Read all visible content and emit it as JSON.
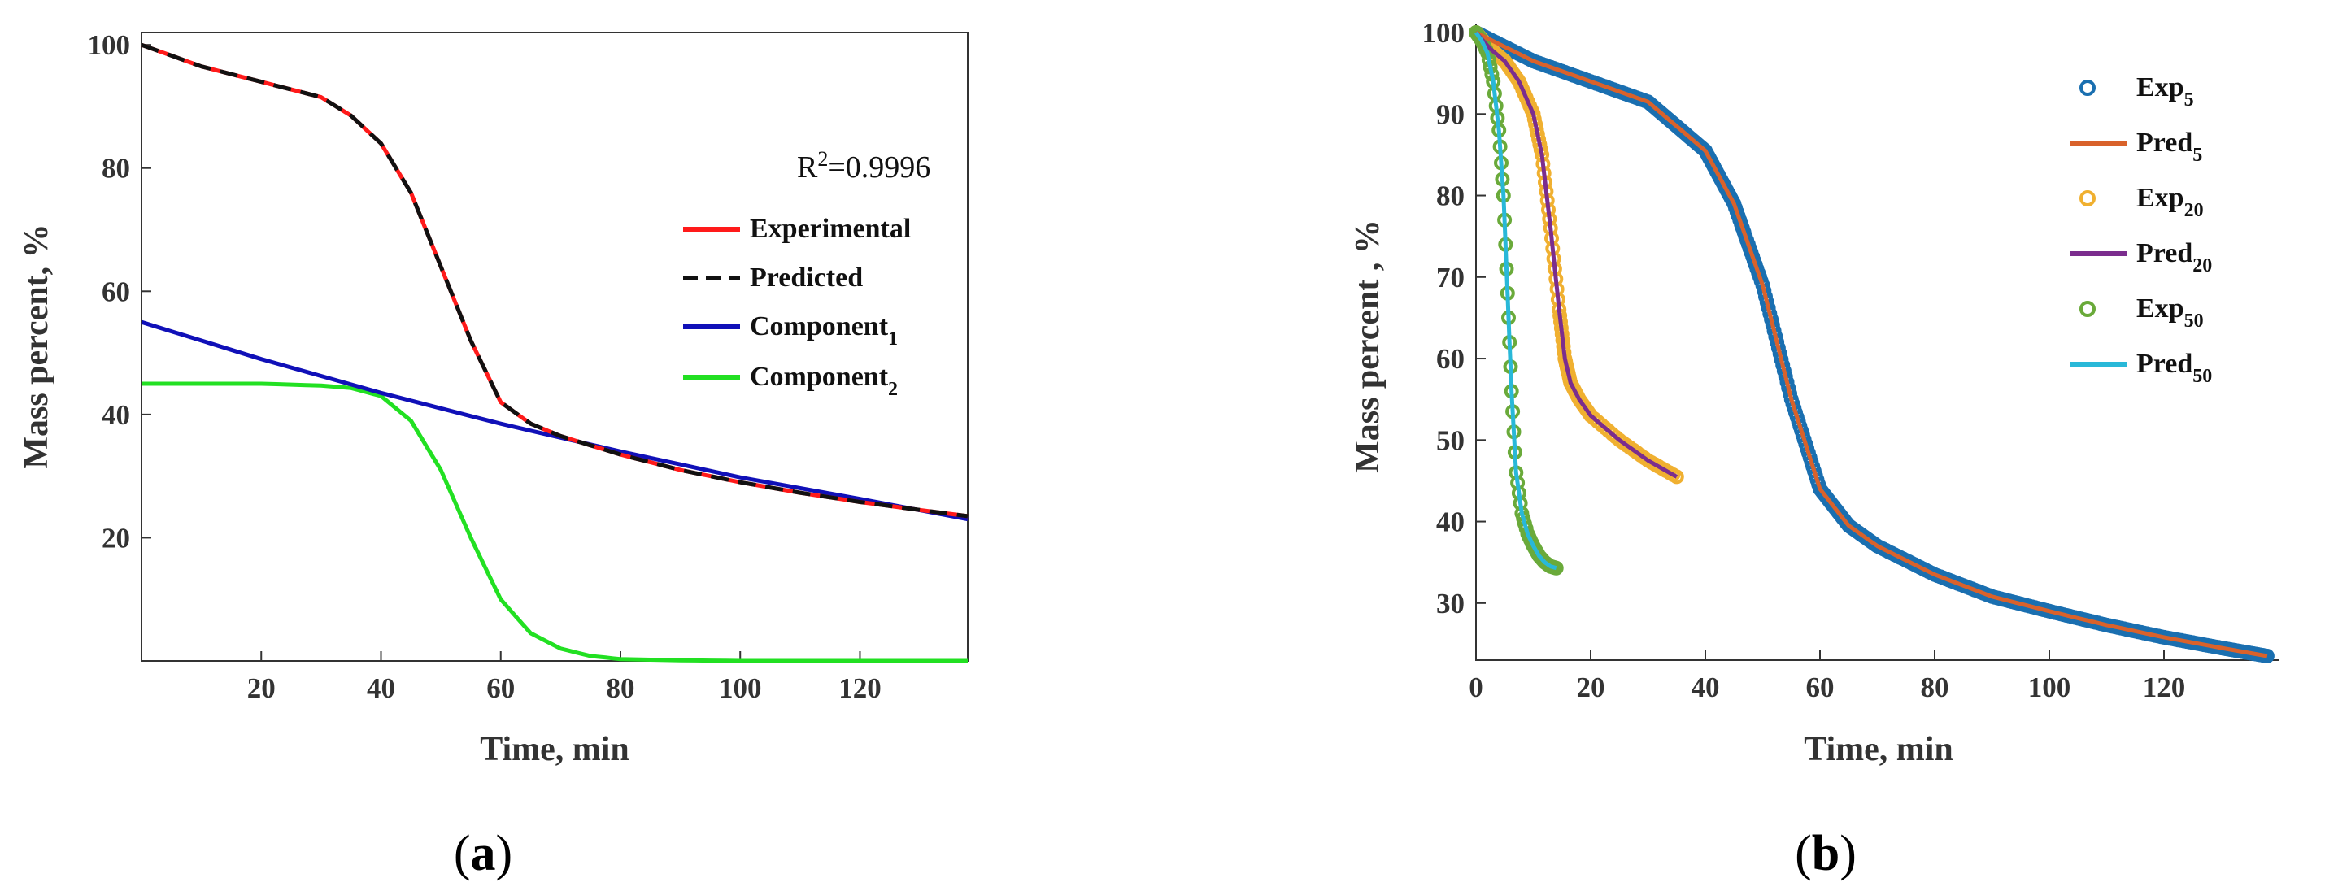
{
  "chart_data": [
    {
      "panel": "a",
      "type": "line",
      "caption": {
        "open": "(",
        "letter": "a",
        "close": ")"
      },
      "xlabel": "Time, min",
      "ylabel": "Mass percent, %",
      "xlim": [
        0,
        138
      ],
      "ylim": [
        0,
        102
      ],
      "xticks": [
        20,
        40,
        60,
        80,
        100,
        120
      ],
      "yticks": [
        20,
        40,
        60,
        80,
        100
      ],
      "annotation": {
        "base": "R",
        "sup": "2",
        "rest": "=0.9996"
      },
      "legend_position": "right",
      "series": [
        {
          "name": "Experimental",
          "sub": "",
          "color": "#ff1a1a",
          "style": "solid",
          "x": [
            0,
            10,
            20,
            30,
            35,
            40,
            45,
            50,
            55,
            60,
            65,
            70,
            80,
            90,
            100,
            110,
            120,
            130,
            138
          ],
          "y": [
            100,
            96.5,
            94,
            91.5,
            88.5,
            84,
            76,
            64,
            52,
            42,
            38.5,
            36.5,
            33.5,
            31,
            29,
            27.3,
            25.8,
            24.5,
            23.5
          ]
        },
        {
          "name": "Predicted",
          "sub": "",
          "color": "#111111",
          "style": "dashed",
          "x": [
            0,
            10,
            20,
            30,
            35,
            40,
            45,
            50,
            55,
            60,
            65,
            70,
            80,
            90,
            100,
            110,
            120,
            130,
            138
          ],
          "y": [
            100,
            96.5,
            94,
            91.5,
            88.5,
            84,
            76,
            64,
            52,
            42,
            38.5,
            36.5,
            33.5,
            31,
            29,
            27.3,
            25.8,
            24.5,
            23.5
          ]
        },
        {
          "name": "Component",
          "sub": "1",
          "color": "#1010b8",
          "style": "solid",
          "x": [
            0,
            20,
            40,
            60,
            80,
            100,
            120,
            138
          ],
          "y": [
            55,
            49,
            43.5,
            38.5,
            34,
            29.8,
            26.3,
            23
          ]
        },
        {
          "name": "Component",
          "sub": "2",
          "color": "#22e022",
          "style": "solid",
          "x": [
            0,
            20,
            30,
            35,
            40,
            45,
            50,
            55,
            60,
            65,
            70,
            75,
            80,
            90,
            100,
            120,
            138
          ],
          "y": [
            45,
            45,
            44.7,
            44.3,
            43,
            39,
            31,
            20,
            10,
            4.5,
            2,
            0.8,
            0.3,
            0.1,
            0,
            0,
            0
          ]
        }
      ]
    },
    {
      "panel": "b",
      "type": "line",
      "caption": {
        "open": "(",
        "letter": "b",
        "close": ")"
      },
      "xlabel": "Time, min",
      "ylabel": "Mass percent , %",
      "xlim": [
        0,
        140
      ],
      "ylim": [
        23,
        101
      ],
      "xticks": [
        0,
        20,
        40,
        60,
        80,
        100,
        120
      ],
      "yticks": [
        30,
        40,
        50,
        60,
        70,
        80,
        90,
        100
      ],
      "legend_position": "top-right",
      "series": [
        {
          "name": "Exp",
          "sub": "5",
          "kind": "markers",
          "color": "#1a6fb0",
          "x": [
            0,
            10,
            20,
            30,
            35,
            40,
            45,
            50,
            55,
            60,
            65,
            70,
            80,
            90,
            100,
            110,
            120,
            130,
            138
          ],
          "y": [
            100,
            96.5,
            94,
            91.5,
            88.5,
            85.5,
            79,
            69,
            55,
            44,
            39.5,
            37,
            33.5,
            30.8,
            29,
            27.3,
            25.8,
            24.5,
            23.5
          ]
        },
        {
          "name": "Pred",
          "sub": "5",
          "kind": "line",
          "color": "#d9622b",
          "x": [
            0,
            10,
            20,
            30,
            35,
            40,
            45,
            50,
            55,
            60,
            65,
            70,
            80,
            90,
            100,
            110,
            120,
            130,
            138
          ],
          "y": [
            100,
            96.5,
            94,
            91.5,
            88.5,
            85.5,
            79,
            69,
            55,
            44,
            39.5,
            37,
            33.5,
            30.8,
            29,
            27.3,
            25.8,
            24.5,
            23.5
          ]
        },
        {
          "name": "Exp",
          "sub": "20",
          "kind": "markers",
          "color": "#f0b030",
          "x": [
            0,
            2.5,
            5,
            7.5,
            10,
            11.5,
            13,
            14.5,
            15.5,
            16.5,
            18,
            20,
            25,
            30,
            35
          ],
          "y": [
            100,
            98,
            96.5,
            94,
            90,
            85,
            76,
            66,
            60,
            57,
            55,
            53,
            50,
            47.5,
            45.5
          ]
        },
        {
          "name": "Pred",
          "sub": "20",
          "kind": "line",
          "color": "#7b2d8e",
          "x": [
            0,
            2.5,
            5,
            7.5,
            10,
            11.5,
            13,
            14.5,
            15.5,
            16.5,
            18,
            20,
            25,
            30,
            35
          ],
          "y": [
            100,
            98,
            96.5,
            94,
            90,
            85,
            76,
            66,
            60,
            57,
            55,
            53,
            50,
            47.5,
            45.5
          ]
        },
        {
          "name": "Exp",
          "sub": "50",
          "kind": "markers",
          "color": "#6aaa3a",
          "x": [
            0,
            1,
            2,
            3,
            4,
            4.8,
            5.5,
            6.2,
            7,
            8,
            9,
            10,
            11,
            12,
            13,
            14
          ],
          "y": [
            100,
            99,
            97.5,
            94,
            88,
            80,
            68,
            56,
            46,
            41,
            38.5,
            37,
            35.8,
            35,
            34.5,
            34.3
          ]
        },
        {
          "name": "Pred",
          "sub": "50",
          "kind": "line",
          "color": "#29b8d8",
          "x": [
            0,
            1,
            2,
            3,
            4,
            4.8,
            5.5,
            6.2,
            7,
            8,
            9,
            10,
            11,
            12,
            13,
            14
          ],
          "y": [
            100,
            99,
            97.5,
            94,
            88,
            80,
            68,
            56,
            46,
            41,
            38.5,
            37,
            35.8,
            35,
            34.5,
            34.3
          ]
        }
      ]
    }
  ]
}
